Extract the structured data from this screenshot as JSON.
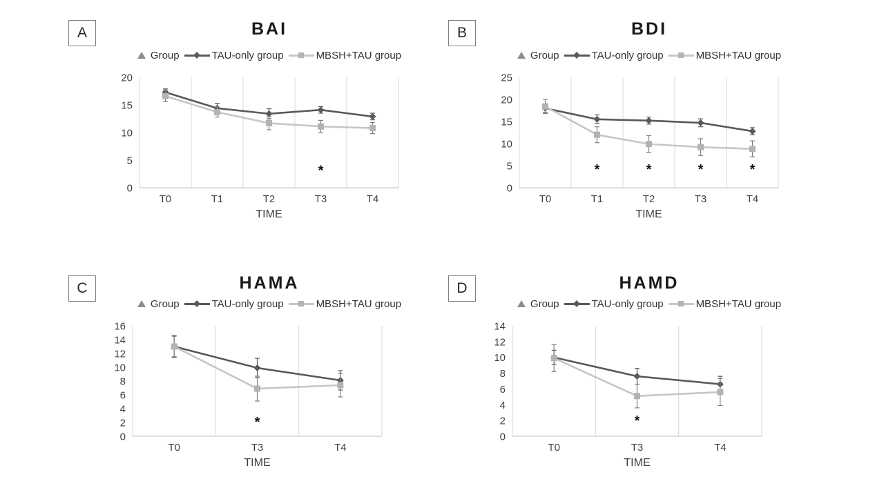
{
  "figure": {
    "description": "Four-panel line chart figure with error bars comparing two groups over time",
    "panel_labels": [
      "A",
      "B",
      "C",
      "D"
    ]
  },
  "colors": {
    "series1_line": "#595959",
    "series1_marker": "#595959",
    "series1_error": "#595959",
    "series2_line": "#c6c6c6",
    "series2_marker": "#b3b3b3",
    "series2_error": "#7f7f7f",
    "legend_triangle": "#8c8c8c",
    "gridline": "#d9d9d9",
    "axis_line": "#c9c9c9",
    "tick_text": "#3f3f3f",
    "title_text": "#1a1a1a",
    "significance_marker": "#111111"
  },
  "chart_data": [
    {
      "panel": "A",
      "type": "line",
      "title": "BAI",
      "xlabel": "TIME",
      "categories": [
        "T0",
        "T1",
        "T2",
        "T3",
        "T4"
      ],
      "ylim": [
        0,
        20
      ],
      "ytick_step": 5,
      "grid": "vertical-only",
      "legend_position": "top",
      "legend": [
        "Group",
        "TAU-only group",
        "MBSH+TAU group"
      ],
      "series": [
        {
          "name": "TAU-only group",
          "marker": "diamond",
          "values": [
            17.3,
            14.4,
            13.4,
            14.1,
            12.9
          ],
          "errors": [
            0.6,
            0.9,
            0.9,
            0.6,
            0.6
          ]
        },
        {
          "name": "MBSH+TAU group",
          "marker": "square",
          "values": [
            16.6,
            13.7,
            11.7,
            11.1,
            10.8
          ],
          "errors": [
            1.0,
            0.9,
            1.2,
            1.1,
            1.0
          ]
        }
      ],
      "significance": [
        {
          "category": "T3",
          "symbol": "*",
          "y": 3.2
        }
      ]
    },
    {
      "panel": "B",
      "type": "line",
      "title": "BDI",
      "xlabel": "TIME",
      "categories": [
        "T0",
        "T1",
        "T2",
        "T3",
        "T4"
      ],
      "ylim": [
        0,
        25
      ],
      "ytick_step": 5,
      "grid": "vertical-only",
      "legend_position": "top",
      "legend": [
        "Group",
        "TAU-only group",
        "MBSH+TAU group"
      ],
      "series": [
        {
          "name": "TAU-only group",
          "marker": "diamond",
          "values": [
            18.0,
            15.5,
            15.2,
            14.7,
            12.8
          ],
          "errors": [
            1.0,
            1.0,
            0.8,
            0.9,
            0.8
          ]
        },
        {
          "name": "MBSH+TAU group",
          "marker": "square",
          "values": [
            18.4,
            12.0,
            9.9,
            9.2,
            8.8
          ],
          "errors": [
            1.6,
            1.8,
            1.9,
            1.9,
            1.8
          ]
        }
      ],
      "significance": [
        {
          "category": "T1",
          "symbol": "*",
          "y": 4.2
        },
        {
          "category": "T2",
          "symbol": "*",
          "y": 4.2
        },
        {
          "category": "T3",
          "symbol": "*",
          "y": 4.2
        },
        {
          "category": "T4",
          "symbol": "*",
          "y": 4.2
        }
      ]
    },
    {
      "panel": "C",
      "type": "line",
      "title": "HAMA",
      "xlabel": "TIME",
      "categories": [
        "T0",
        "T3",
        "T4"
      ],
      "ylim": [
        0,
        16
      ],
      "ytick_step": 2,
      "grid": "vertical-only",
      "legend_position": "top",
      "legend": [
        "Group",
        "TAU-only group",
        "MBSH+TAU group"
      ],
      "series": [
        {
          "name": "TAU-only group",
          "marker": "diamond",
          "values": [
            13.0,
            9.9,
            8.1
          ],
          "errors": [
            1.5,
            1.4,
            1.4
          ]
        },
        {
          "name": "MBSH+TAU group",
          "marker": "square",
          "values": [
            13.0,
            6.9,
            7.4
          ],
          "errors": [
            1.6,
            1.8,
            1.7
          ]
        }
      ],
      "significance": [
        {
          "category": "T3",
          "symbol": "*",
          "y": 2.1
        }
      ]
    },
    {
      "panel": "D",
      "type": "line",
      "title": "HAMD",
      "xlabel": "TIME",
      "categories": [
        "T0",
        "T3",
        "T4"
      ],
      "ylim": [
        0,
        14
      ],
      "ytick_step": 2,
      "grid": "vertical-only",
      "legend_position": "top",
      "legend": [
        "Group",
        "TAU-only group",
        "MBSH+TAU group"
      ],
      "series": [
        {
          "name": "TAU-only group",
          "marker": "diamond",
          "values": [
            10.0,
            7.6,
            6.6
          ],
          "errors": [
            0.9,
            1.0,
            1.0
          ]
        },
        {
          "name": "MBSH+TAU group",
          "marker": "square",
          "values": [
            9.9,
            5.1,
            5.6
          ],
          "errors": [
            1.7,
            1.5,
            1.7
          ]
        }
      ],
      "significance": [
        {
          "category": "T3",
          "symbol": "*",
          "y": 2.0
        }
      ]
    }
  ]
}
